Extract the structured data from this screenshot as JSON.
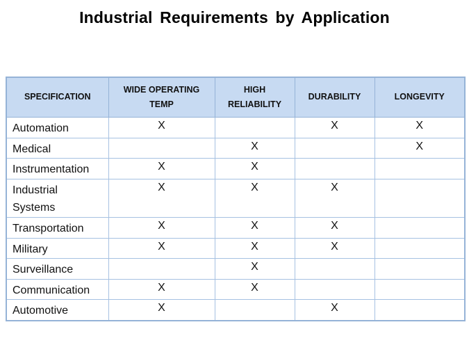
{
  "title": "Industrial Requirements by Application",
  "colors": {
    "header_bg": "#C7DAF2",
    "border_outer": "#95B3D7",
    "border_inner": "#A6C1E2",
    "text": "#111111",
    "background": "#FFFFFF"
  },
  "chart_data": {
    "type": "table",
    "title": "Industrial Requirements by Application",
    "columns": [
      "SPECIFICATION",
      "WIDE OPERATING TEMP",
      "HIGH RELIABILITY",
      "DURABILITY",
      "LONGEVITY"
    ],
    "rows": [
      {
        "application": "Automation",
        "marks": [
          "X",
          "",
          "X",
          "X"
        ]
      },
      {
        "application": "Medical",
        "marks": [
          "",
          "X",
          "",
          "X"
        ]
      },
      {
        "application": "Instrumentation",
        "marks": [
          "X",
          "X",
          "",
          ""
        ]
      },
      {
        "application": "Industrial\nSystems",
        "marks": [
          "X",
          "X",
          "X",
          ""
        ]
      },
      {
        "application": "Transportation",
        "marks": [
          "X",
          "X",
          "X",
          ""
        ]
      },
      {
        "application": "Military",
        "marks": [
          "X",
          "X",
          "X",
          ""
        ]
      },
      {
        "application": "Surveillance",
        "marks": [
          "",
          "X",
          "",
          ""
        ]
      },
      {
        "application": "Communication",
        "marks": [
          "X",
          "X",
          "",
          ""
        ]
      },
      {
        "application": "Automotive",
        "marks": [
          "X",
          "",
          "X",
          ""
        ]
      }
    ]
  }
}
